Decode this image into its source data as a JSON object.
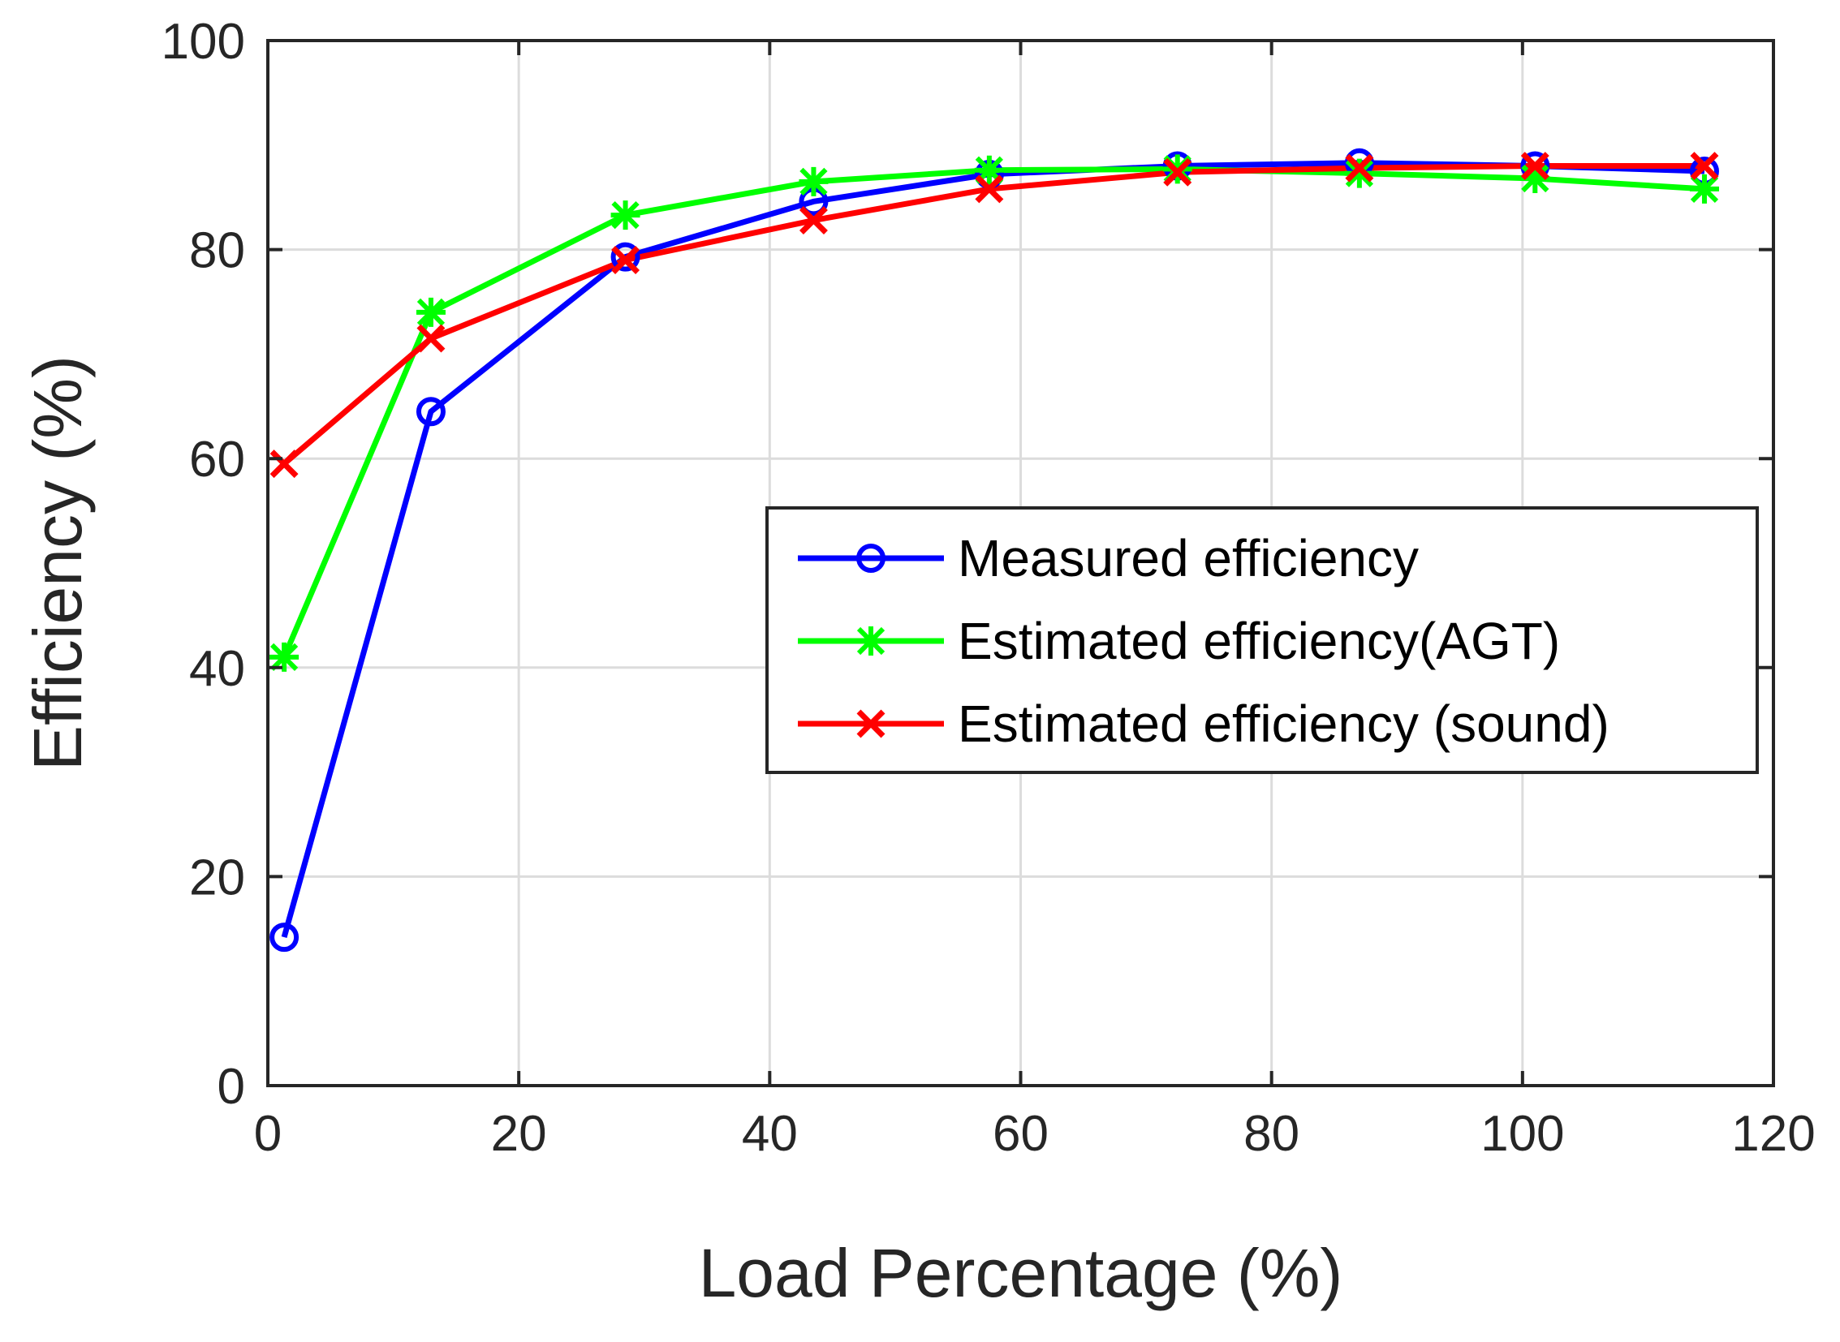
{
  "chart_data": {
    "type": "line",
    "title": "",
    "xlabel": "Load Percentage (%)",
    "ylabel": "Efficiency (%)",
    "xlim": [
      0,
      120
    ],
    "ylim": [
      0,
      100
    ],
    "xticks": [
      0,
      20,
      40,
      60,
      80,
      100,
      120
    ],
    "yticks": [
      0,
      20,
      40,
      60,
      80,
      100
    ],
    "grid": true,
    "legend_position": "center-right",
    "x": [
      1.3,
      13,
      28.5,
      43.5,
      57.5,
      72.5,
      87,
      101,
      114.5
    ],
    "series": [
      {
        "name": "Measured efficiency",
        "color": "#0000ff",
        "marker": "circle",
        "values": [
          14.2,
          64.5,
          79.3,
          84.6,
          87.2,
          88.0,
          88.3,
          88.0,
          87.5
        ]
      },
      {
        "name": "Estimated efficiency(AGT)",
        "color": "#00ff00",
        "marker": "asterisk",
        "values": [
          41.0,
          74.0,
          83.3,
          86.5,
          87.6,
          87.7,
          87.3,
          86.8,
          85.8
        ]
      },
      {
        "name": "Estimated efficiency (sound)",
        "color": "#ff0000",
        "marker": "x",
        "values": [
          59.5,
          71.5,
          79.0,
          82.8,
          85.8,
          87.4,
          87.8,
          88.0,
          88.0
        ]
      }
    ]
  }
}
